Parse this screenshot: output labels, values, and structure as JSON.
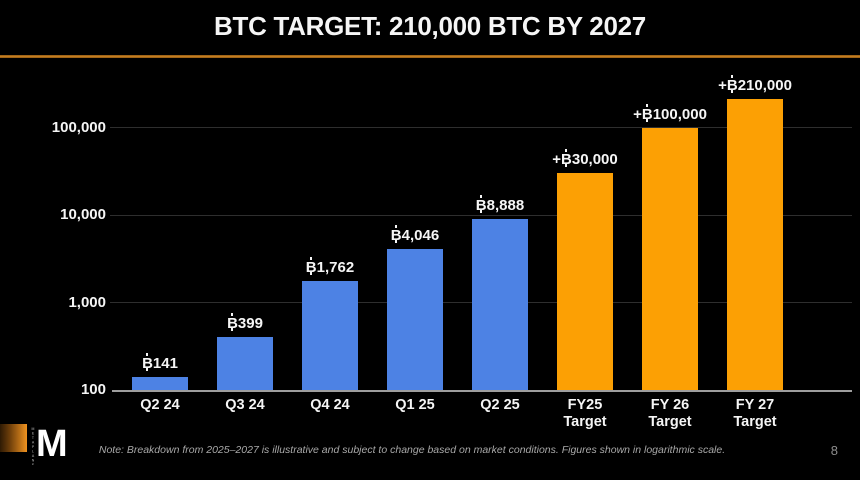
{
  "slide": {
    "title": "BTC TARGET: 210,000 BTC BY 2027",
    "note": "Note: Breakdown from 2025–2027 is illustrative and subject to change based on market conditions. Figures shown in logarithmic scale.",
    "page_number": "8",
    "logo": {
      "letter": "M",
      "vertical_text": "METAPLANET"
    }
  },
  "colors": {
    "background": "#000000",
    "bar_blue": "#4d82e4",
    "bar_orange": "#fca004",
    "divider_orange": "#b97722",
    "gridline": "#2e2e2e",
    "axis_line": "#9e9e9e",
    "text_white": "#f5f5f5",
    "note_gray": "#a8a8a8"
  },
  "chart_data": {
    "type": "bar",
    "scale": "logarithmic",
    "title": "BTC TARGET: 210,000 BTC BY 2027",
    "xlabel": "",
    "ylabel": "",
    "ylim": [
      100,
      500000
    ],
    "grid": true,
    "legend": "none",
    "categories": [
      "Q2 24",
      "Q3 24",
      "Q4 24",
      "Q1 25",
      "Q2 25",
      "FY25\nTarget",
      "FY 26\nTarget",
      "FY 27\nTarget"
    ],
    "values": [
      141,
      399,
      1762,
      4046,
      8888,
      30000,
      100000,
      210000
    ],
    "value_labels": [
      "₿141",
      "₿399",
      "₿1,762",
      "₿4,046",
      "₿8,888",
      "+₿30,000",
      "+₿100,000",
      "+₿210,000"
    ],
    "series_colors": [
      "blue",
      "blue",
      "blue",
      "blue",
      "blue",
      "orange",
      "orange",
      "orange"
    ],
    "y_ticks": [
      {
        "label": "100",
        "value": 100
      },
      {
        "label": "1,000",
        "value": 1000
      },
      {
        "label": "10,000",
        "value": 10000
      },
      {
        "label": "100,000",
        "value": 100000
      }
    ]
  }
}
